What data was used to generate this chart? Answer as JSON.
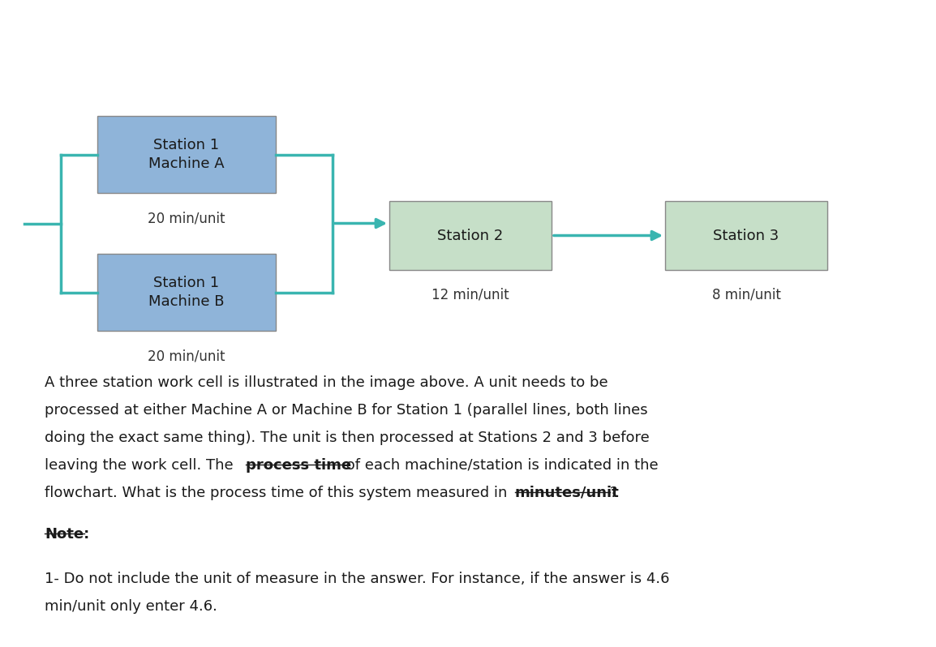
{
  "bg_color": "#ffffff",
  "box_color_blue": "#8fb4d9",
  "box_color_green": "#c6dfc8",
  "teal_color": "#3ab5b0",
  "station1A_label": "Station 1\nMachine A",
  "station1B_label": "Station 1\nMachine B",
  "station2_label": "Station 2",
  "station3_label": "Station 3",
  "station1A_time": "20 min/unit",
  "station1B_time": "20 min/unit",
  "station2_time": "12 min/unit",
  "station3_time": "8 min/unit",
  "font_size_box": 13,
  "font_size_time": 12,
  "font_size_body": 13,
  "body_lines": [
    "A three station work cell is illustrated in the image above. A unit needs to be",
    "processed at either Machine A or Machine B for Station 1 (parallel lines, both lines",
    "doing the exact same thing). The unit is then processed at Stations 2 and 3 before"
  ],
  "line4_part1": "leaving the work cell. The ",
  "line4_bold": "process time",
  "line4_part2": " of each machine/station is indicated in the",
  "line5_part1": "flowchart. What is the process time of this system measured in ",
  "line5_bold": "minutes/unit",
  "line5_part3": "?",
  "note_label": "Note:",
  "note_line1": "1- Do not include the unit of measure in the answer. For instance, if the answer is 4.6",
  "note_line2": "min/unit only enter 4.6."
}
